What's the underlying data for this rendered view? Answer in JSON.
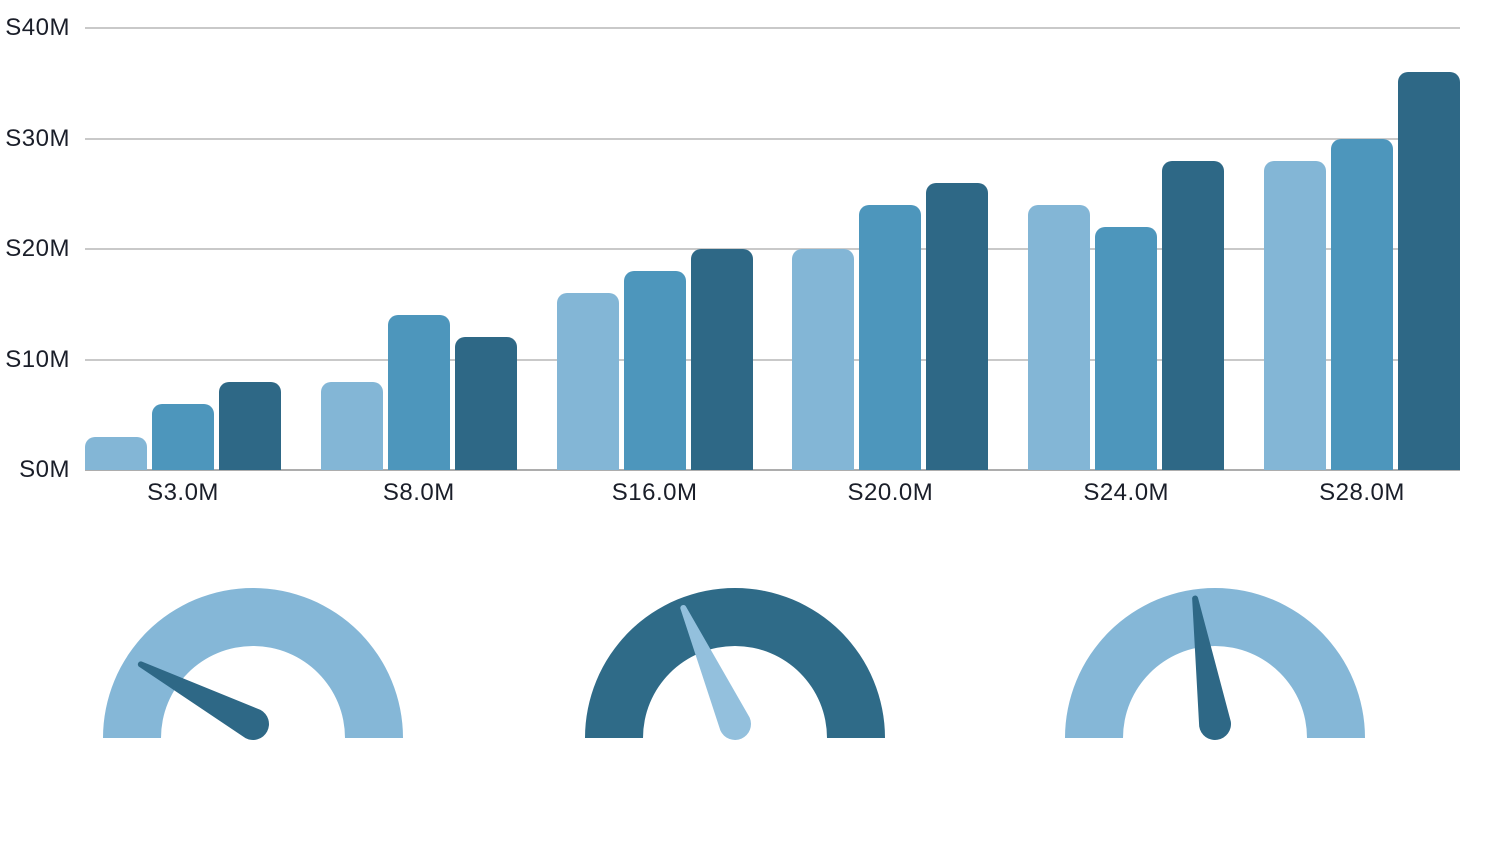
{
  "chart_data": [
    {
      "type": "bar",
      "title": "",
      "categories": [
        "S3.0M",
        "S8.0M",
        "S16.0M",
        "S20.0M",
        "S24.0M",
        "S28.0M"
      ],
      "series": [
        {
          "name": "series-light",
          "color": "#83b6d6",
          "values": [
            3,
            8,
            16,
            20,
            24,
            28
          ]
        },
        {
          "name": "series-medium",
          "color": "#4d96bc",
          "values": [
            6,
            14,
            18,
            24,
            22,
            30
          ]
        },
        {
          "name": "series-dark",
          "color": "#2e6886",
          "values": [
            8,
            12,
            20,
            26,
            28,
            36
          ]
        }
      ],
      "y_ticks": [
        {
          "label": "S40M",
          "value": 40
        },
        {
          "label": "S30M",
          "value": 30
        },
        {
          "label": "S20M",
          "value": 20
        },
        {
          "label": "S10M",
          "value": 10
        },
        {
          "label": "S0M",
          "value": 0
        }
      ],
      "ylim": [
        0,
        40
      ],
      "xlabel": "",
      "ylabel": "",
      "grid": true,
      "legend": false
    },
    {
      "type": "gauge",
      "items": [
        {
          "name": "gauge-left",
          "arc_color": "#85b7d7",
          "needle_color": "#2e6886",
          "needle_angle_deg": -62
        },
        {
          "name": "gauge-center",
          "arc_color": "#2f6b88",
          "needle_color": "#93c0dd",
          "needle_angle_deg": -24
        },
        {
          "name": "gauge-right",
          "arc_color": "#85b7d7",
          "needle_color": "#2e6886",
          "needle_angle_deg": -9
        }
      ]
    }
  ],
  "style": {
    "background": "#ffffff",
    "grid_color": "#c9c9c9",
    "axis_line_color": "#adadad",
    "text_color": "#1a1e29"
  }
}
